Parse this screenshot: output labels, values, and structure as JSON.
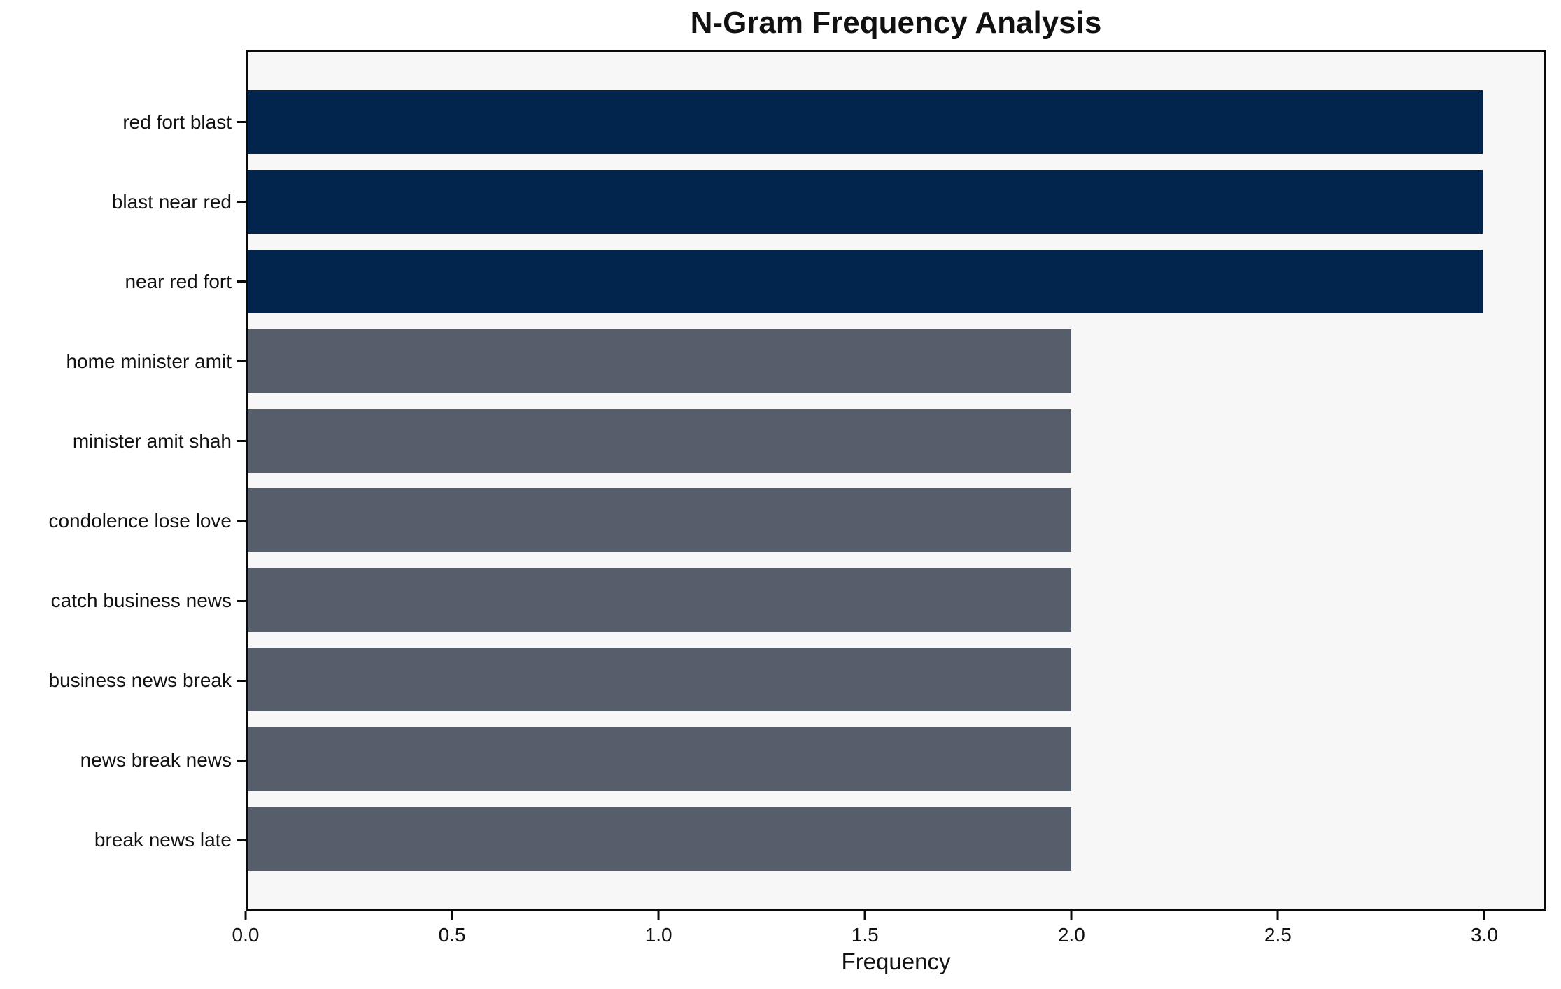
{
  "chart_data": {
    "type": "bar",
    "orientation": "horizontal",
    "title": "N-Gram Frequency Analysis",
    "xlabel": "Frequency",
    "ylabel": "",
    "categories": [
      "red fort blast",
      "blast near red",
      "near red fort",
      "home minister amit",
      "minister amit shah",
      "condolence lose love",
      "catch business news",
      "business news break",
      "news break news",
      "break news late"
    ],
    "values": [
      3,
      3,
      3,
      2,
      2,
      2,
      2,
      2,
      2,
      2
    ],
    "bar_colors": [
      "#02254e",
      "#02254e",
      "#02254e",
      "#565d6b",
      "#565d6b",
      "#565d6b",
      "#565d6b",
      "#565d6b",
      "#565d6b",
      "#565d6b"
    ],
    "xlim": [
      0,
      3.15
    ],
    "x_ticks": [
      "0.0",
      "0.5",
      "1.0",
      "1.5",
      "2.0",
      "2.5",
      "3.0"
    ],
    "x_tick_values": [
      0,
      0.5,
      1,
      1.5,
      2,
      2.5,
      3
    ],
    "grid": false,
    "legend": null,
    "colors": {
      "highlight_bar": "#02254e",
      "default_bar": "#565d6b",
      "plot_background": "#f7f7f8",
      "figure_background": "#ffffff",
      "spine": "#0a0a0a",
      "text": "#111111"
    }
  }
}
